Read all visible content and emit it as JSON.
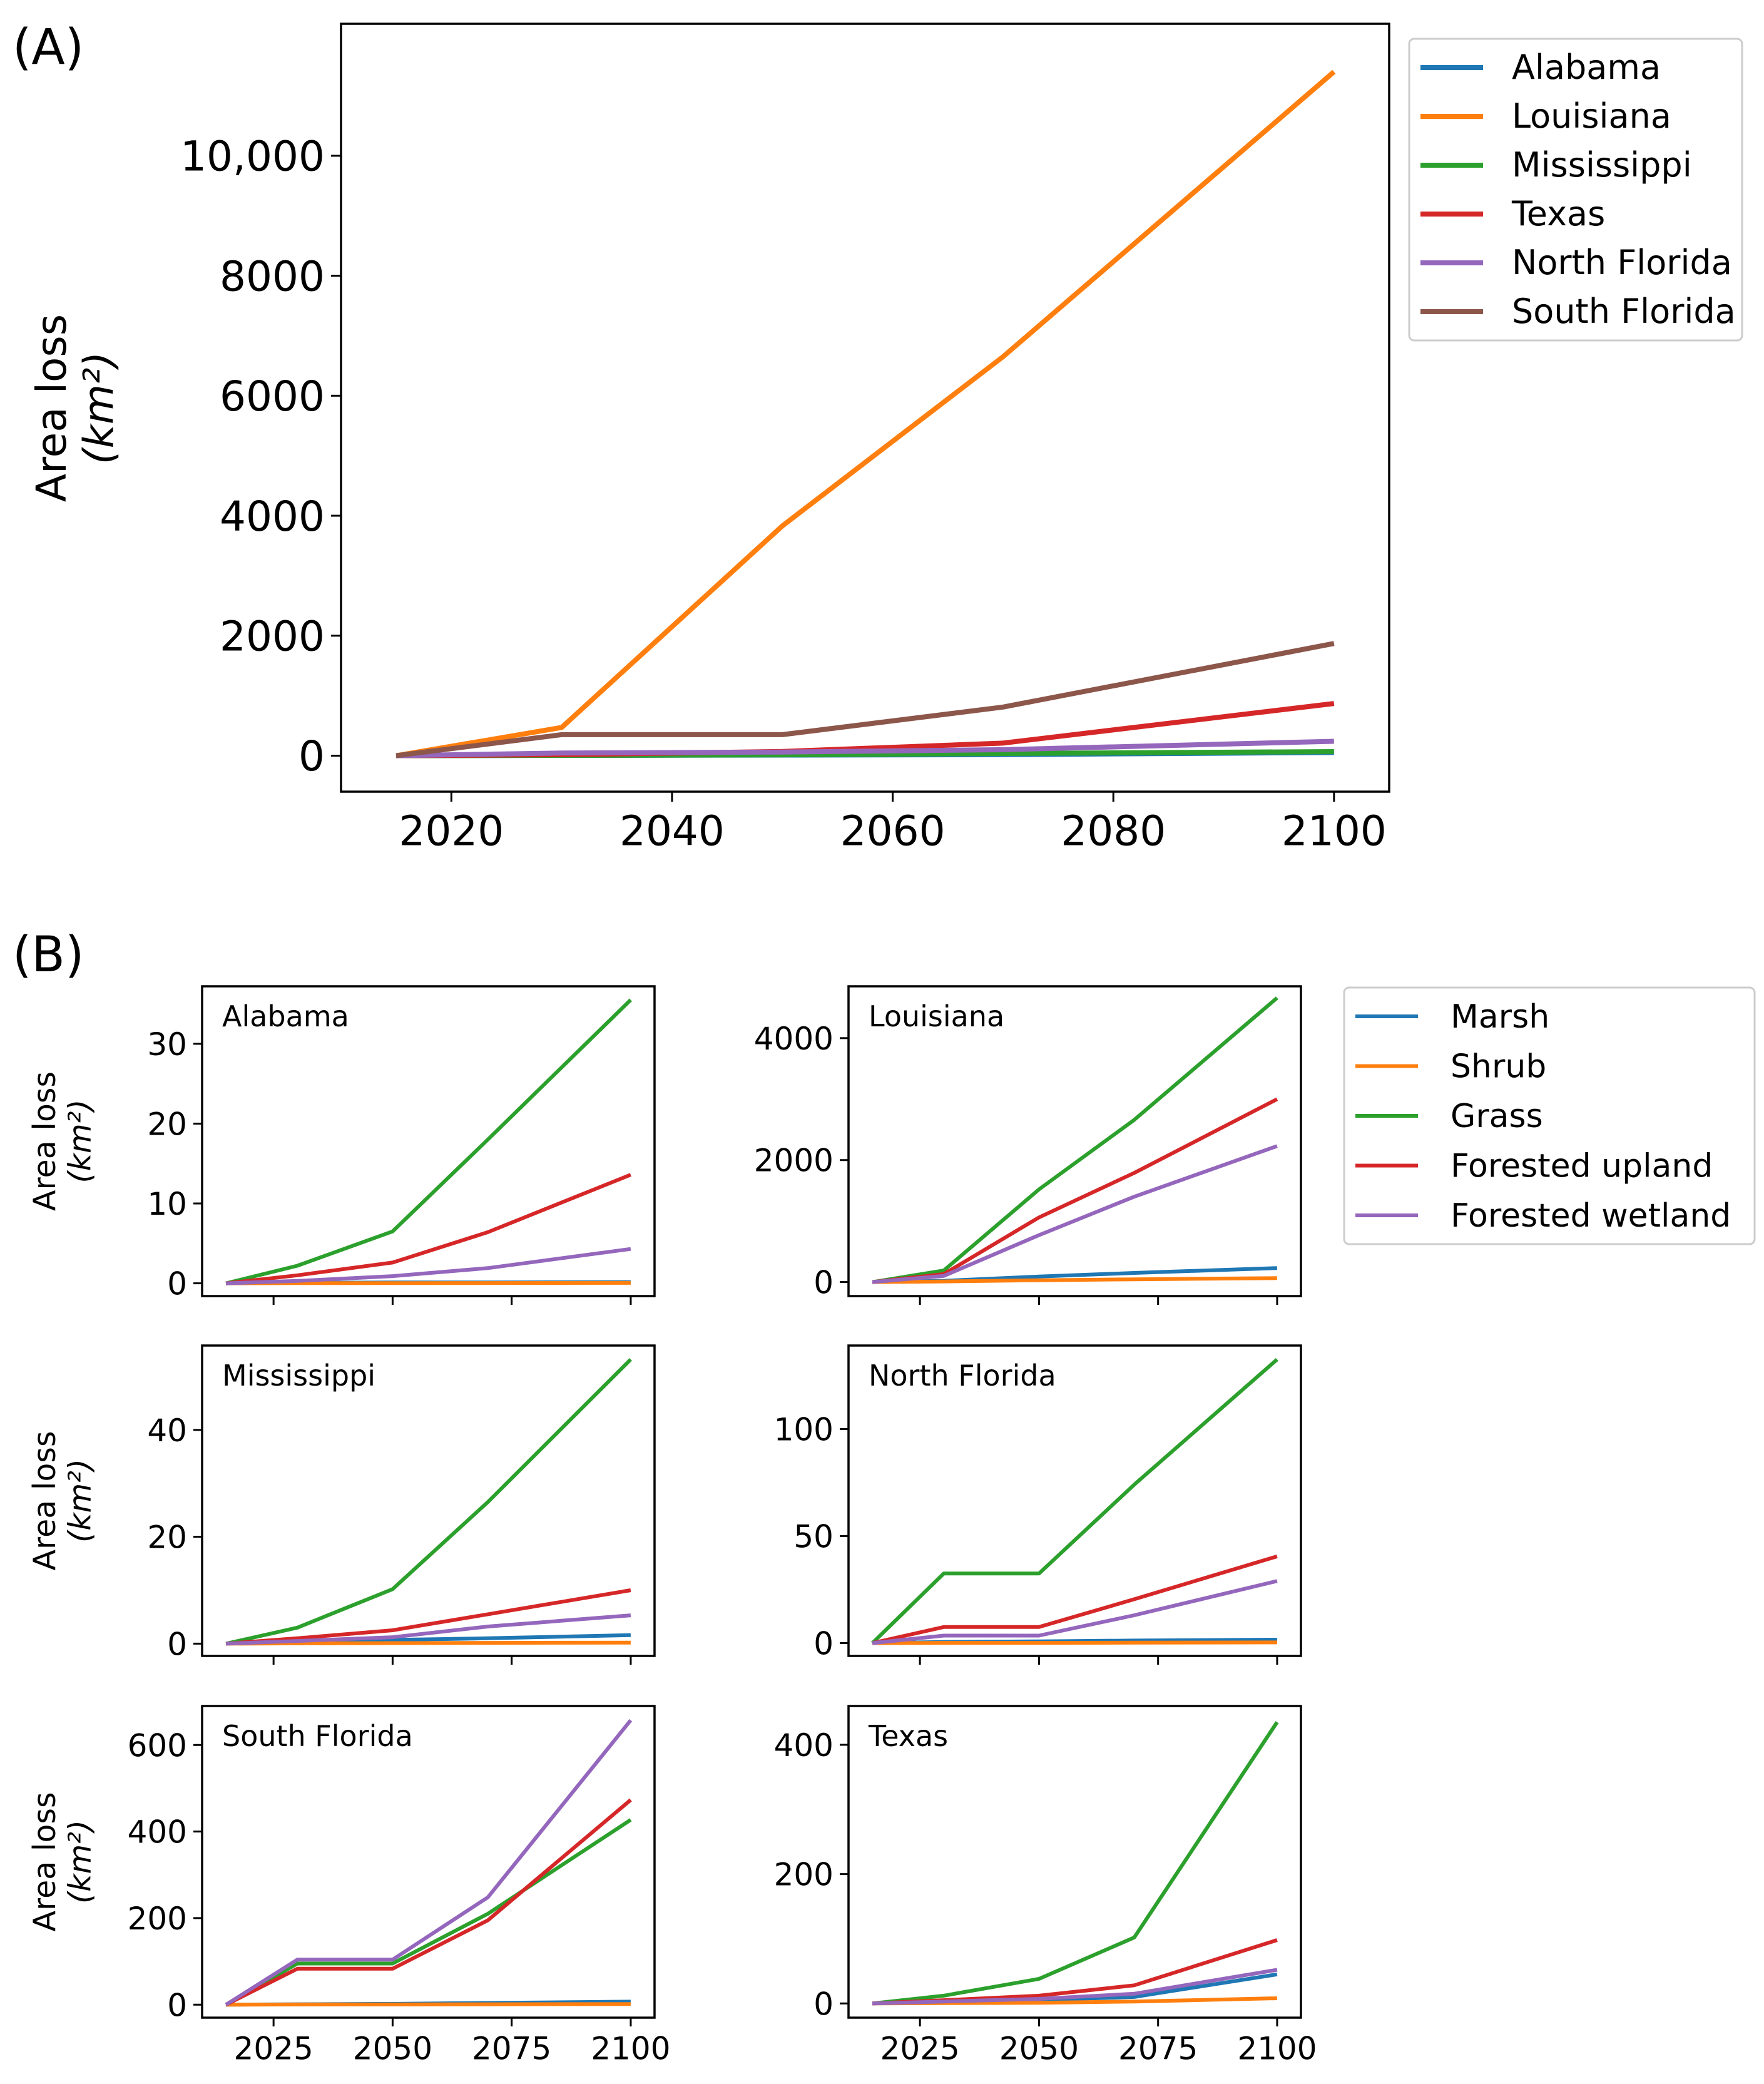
{
  "colors": {
    "blue": "#1f77b4",
    "orange": "#ff7f0e",
    "green": "#2ca02c",
    "red": "#d62728",
    "purple": "#9467bd",
    "brown": "#8c564b"
  },
  "panel_a_label": "(A)",
  "panel_b_label": "(B)",
  "chart_data": [
    {
      "id": "A",
      "type": "line",
      "title": "",
      "xlabel": "",
      "ylabel": "Area loss",
      "ylabel_unit": "(km²)",
      "xlim": [
        2010,
        2105
      ],
      "ylim": [
        -600,
        12200
      ],
      "xticks": [
        2020,
        2040,
        2060,
        2080,
        2100
      ],
      "xtick_labels": [
        "2020",
        "2040",
        "2060",
        "2080",
        "2100"
      ],
      "yticks": [
        0,
        2000,
        4000,
        6000,
        8000,
        10000
      ],
      "ytick_labels": [
        "0",
        "2000",
        "4000",
        "6000",
        "8000",
        "10,000"
      ],
      "legend_position": "outside-right",
      "x": [
        2015,
        2030,
        2050,
        2070,
        2100
      ],
      "series": [
        {
          "name": "Alabama",
          "color": "blue",
          "values": [
            0,
            5,
            10,
            18,
            53
          ]
        },
        {
          "name": "Louisiana",
          "color": "orange",
          "values": [
            0,
            470,
            3830,
            6650,
            11400
          ]
        },
        {
          "name": "Mississippi",
          "color": "green",
          "values": [
            0,
            5,
            14,
            36,
            68
          ]
        },
        {
          "name": "Texas",
          "color": "red",
          "values": [
            0,
            15,
            70,
            210,
            870
          ]
        },
        {
          "name": "North Florida",
          "color": "purple",
          "values": [
            0,
            45,
            60,
            100,
            240
          ]
        },
        {
          "name": "South Florida",
          "color": "brown",
          "values": [
            0,
            350,
            350,
            810,
            1870
          ]
        }
      ]
    },
    {
      "id": "B",
      "type": "line",
      "ylabel": "Area loss",
      "ylabel_unit": "(km²)",
      "xlim": [
        2010,
        2105
      ],
      "xticks": [
        2025,
        2050,
        2075,
        2100
      ],
      "xtick_labels": [
        "2025",
        "2050",
        "2075",
        "2100"
      ],
      "x": [
        2015,
        2030,
        2050,
        2070,
        2100
      ],
      "legend_position": "outside-right",
      "legend": [
        {
          "name": "Marsh",
          "color": "blue"
        },
        {
          "name": "Shrub",
          "color": "orange"
        },
        {
          "name": "Grass",
          "color": "green"
        },
        {
          "name": "Forested upland",
          "color": "red"
        },
        {
          "name": "Forested wetland",
          "color": "purple"
        }
      ],
      "subplots": [
        {
          "title": "Alabama",
          "ylim": [
            -1.6,
            37.2
          ],
          "yticks": [
            0,
            10,
            20,
            30
          ],
          "ytick_labels": [
            "0",
            "10",
            "20",
            "30"
          ],
          "series": [
            {
              "name": "Marsh",
              "values": [
                0,
                0.05,
                0.1,
                0.1,
                0.15
              ]
            },
            {
              "name": "Shrub",
              "values": [
                0,
                0.02,
                0.03,
                0.04,
                0.05
              ]
            },
            {
              "name": "Grass",
              "values": [
                0,
                2.2,
                6.5,
                18,
                35.5
              ]
            },
            {
              "name": "Forested upland",
              "values": [
                0,
                1.0,
                2.6,
                6.4,
                13.6
              ]
            },
            {
              "name": "Forested wetland",
              "values": [
                0,
                0.3,
                0.9,
                1.9,
                4.3
              ]
            }
          ]
        },
        {
          "title": "Louisiana",
          "ylim": [
            -230,
            4850
          ],
          "yticks": [
            0,
            2000,
            4000
          ],
          "ytick_labels": [
            "0",
            "2000",
            "4000"
          ],
          "series": [
            {
              "name": "Marsh",
              "values": [
                0,
                20,
                90,
                150,
                230
              ]
            },
            {
              "name": "Shrub",
              "values": [
                0,
                10,
                30,
                45,
                65
              ]
            },
            {
              "name": "Grass",
              "values": [
                0,
                190,
                1520,
                2660,
                4660
              ]
            },
            {
              "name": "Forested upland",
              "values": [
                0,
                130,
                1060,
                1790,
                3000
              ]
            },
            {
              "name": "Forested wetland",
              "values": [
                0,
                100,
                770,
                1400,
                2230
              ]
            }
          ]
        },
        {
          "title": "Mississippi",
          "ylim": [
            -2.3,
            55.8
          ],
          "yticks": [
            0,
            20,
            40
          ],
          "ytick_labels": [
            "0",
            "20",
            "40"
          ],
          "series": [
            {
              "name": "Marsh",
              "values": [
                0,
                0.3,
                0.7,
                1.0,
                1.6
              ]
            },
            {
              "name": "Shrub",
              "values": [
                0,
                0.05,
                0.1,
                0.15,
                0.2
              ]
            },
            {
              "name": "Grass",
              "values": [
                0,
                3.0,
                10.2,
                26.5,
                53.2
              ]
            },
            {
              "name": "Forested upland",
              "values": [
                0,
                1.0,
                2.5,
                5.5,
                10.0
              ]
            },
            {
              "name": "Forested wetland",
              "values": [
                0,
                0.5,
                1.2,
                3.2,
                5.3
              ]
            }
          ]
        },
        {
          "title": "North Florida",
          "ylim": [
            -6,
            139
          ],
          "yticks": [
            0,
            50,
            100
          ],
          "ytick_labels": [
            "0",
            "50",
            "100"
          ],
          "series": [
            {
              "name": "Marsh",
              "values": [
                0,
                0.5,
                0.8,
                1.2,
                1.6
              ]
            },
            {
              "name": "Shrub",
              "values": [
                0,
                0.1,
                0.1,
                0.2,
                0.3
              ]
            },
            {
              "name": "Grass",
              "values": [
                0,
                32.5,
                32.5,
                74,
                132.5
              ]
            },
            {
              "name": "Forested upland",
              "values": [
                0,
                7.5,
                7.5,
                20.5,
                40.5
              ]
            },
            {
              "name": "Forested wetland",
              "values": [
                0,
                3.5,
                3.5,
                13,
                29
              ]
            }
          ]
        },
        {
          "title": "South Florida",
          "ylim": [
            -30,
            690
          ],
          "yticks": [
            0,
            200,
            400,
            600
          ],
          "ytick_labels": [
            "0",
            "200",
            "400",
            "600"
          ],
          "series": [
            {
              "name": "Marsh",
              "values": [
                0,
                1,
                2,
                4,
                7
              ]
            },
            {
              "name": "Shrub",
              "values": [
                0,
                0.5,
                0.5,
                1,
                1.5
              ]
            },
            {
              "name": "Grass",
              "values": [
                0,
                95,
                95,
                210,
                427
              ]
            },
            {
              "name": "Forested upland",
              "values": [
                0,
                83,
                83,
                195,
                473
              ]
            },
            {
              "name": "Forested wetland",
              "values": [
                0,
                104,
                104,
                248,
                657
              ]
            }
          ]
        },
        {
          "title": "Texas",
          "ylim": [
            -22,
            460
          ],
          "yticks": [
            0,
            200,
            400
          ],
          "ytick_labels": [
            "0",
            "200",
            "400"
          ],
          "series": [
            {
              "name": "Marsh",
              "values": [
                0,
                3,
                5,
                10,
                45
              ]
            },
            {
              "name": "Shrub",
              "values": [
                0,
                0.5,
                1,
                3,
                8
              ]
            },
            {
              "name": "Grass",
              "values": [
                0,
                12,
                38,
                102,
                435
              ]
            },
            {
              "name": "Forested upland",
              "values": [
                0,
                5,
                12,
                28,
                98
              ]
            },
            {
              "name": "Forested wetland",
              "values": [
                0,
                3,
                7,
                15,
                52
              ]
            }
          ]
        }
      ]
    }
  ]
}
